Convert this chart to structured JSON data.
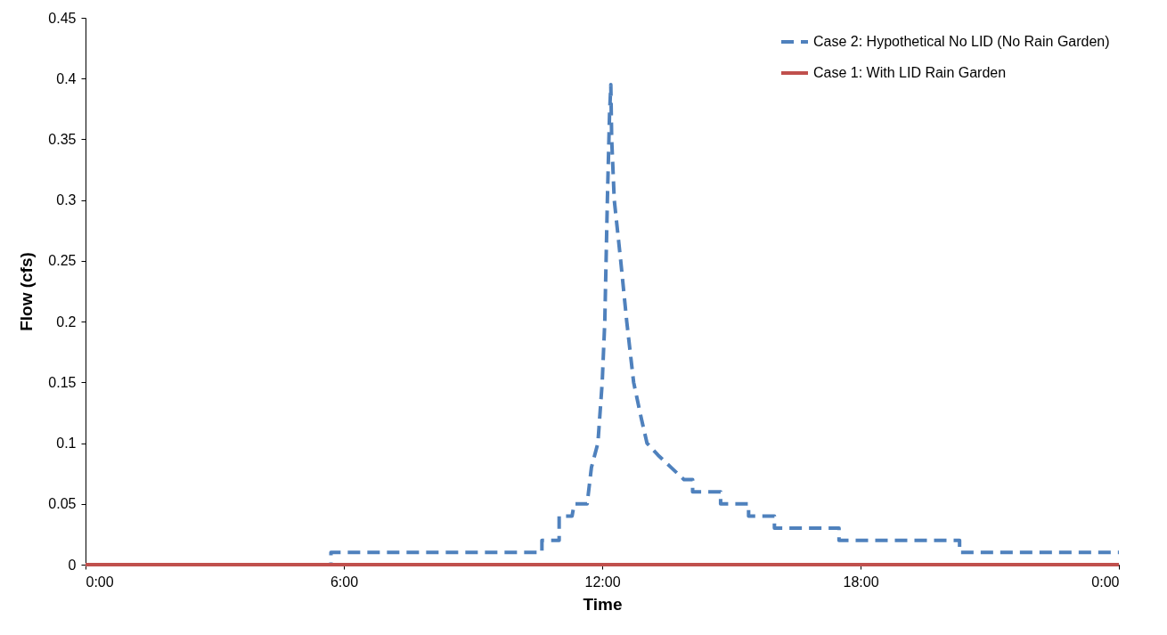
{
  "chart_data": {
    "type": "line",
    "xlabel": "Time",
    "ylabel": "Flow (cfs)",
    "xlim": [
      0,
      24
    ],
    "xticks": [
      {
        "value": 0,
        "label": "0:00"
      },
      {
        "value": 6,
        "label": "6:00"
      },
      {
        "value": 12,
        "label": "12:00"
      },
      {
        "value": 18,
        "label": "18:00"
      },
      {
        "value": 24,
        "label": "0:00"
      }
    ],
    "ylim": [
      0,
      0.45
    ],
    "yticks": [
      0,
      0.05,
      0.1,
      0.15,
      0.2,
      0.25,
      0.3,
      0.35,
      0.4,
      0.45
    ],
    "grid": false,
    "legend": "top right",
    "marker": "none",
    "series": [
      {
        "name": "Case 2: Hypothetical No LID (No Rain Garden)",
        "color": "#4f81bd",
        "line_style": "dashed",
        "x": [
          0,
          5.7,
          5.7,
          10.6,
          10.6,
          11.0,
          11.0,
          11.3,
          11.35,
          11.65,
          11.75,
          11.9,
          12.0,
          12.06,
          12.12,
          12.17,
          12.2,
          12.22,
          12.28,
          12.43,
          12.57,
          12.73,
          12.91,
          13.04,
          13.3,
          13.6,
          13.9,
          14.1,
          14.1,
          14.75,
          14.75,
          15.4,
          15.4,
          16.0,
          16.0,
          17.5,
          17.5,
          20.3,
          20.3,
          24
        ],
        "values": [
          0,
          0,
          0.01,
          0.01,
          0.02,
          0.02,
          0.04,
          0.04,
          0.05,
          0.05,
          0.08,
          0.1,
          0.15,
          0.2,
          0.3,
          0.37,
          0.395,
          0.35,
          0.3,
          0.25,
          0.2,
          0.15,
          0.12,
          0.1,
          0.09,
          0.08,
          0.07,
          0.07,
          0.06,
          0.06,
          0.05,
          0.05,
          0.04,
          0.04,
          0.03,
          0.03,
          0.02,
          0.02,
          0.01,
          0.01
        ]
      },
      {
        "name": "Case 1: With LID Rain Garden",
        "color": "#c0504d",
        "line_style": "solid",
        "x": [
          0,
          24
        ],
        "values": [
          0,
          0
        ]
      }
    ]
  }
}
